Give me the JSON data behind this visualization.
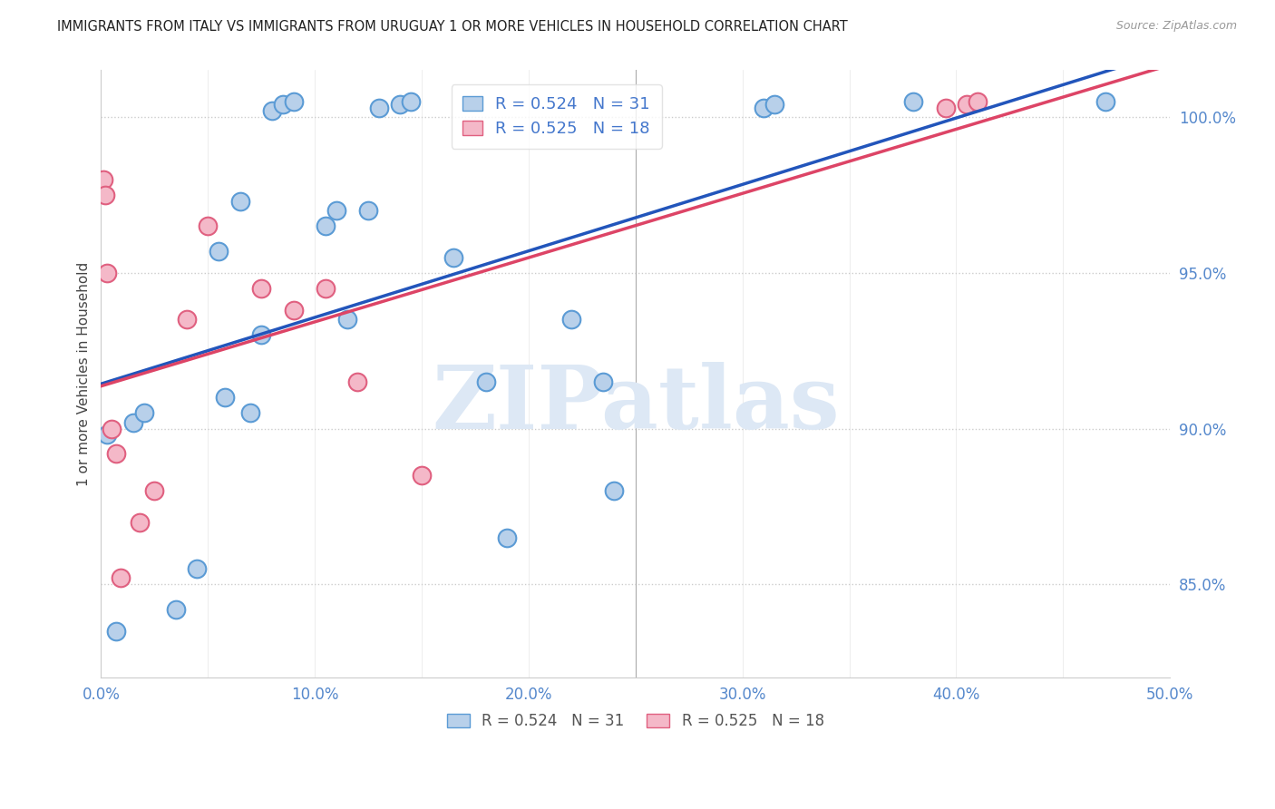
{
  "title": "IMMIGRANTS FROM ITALY VS IMMIGRANTS FROM URUGUAY 1 OR MORE VEHICLES IN HOUSEHOLD CORRELATION CHART",
  "source": "Source: ZipAtlas.com",
  "ylabel": "1 or more Vehicles in Household",
  "xlim": [
    0.0,
    50.0
  ],
  "ylim": [
    82.0,
    101.5
  ],
  "x_ticks": [
    0.0,
    10.0,
    20.0,
    30.0,
    40.0,
    50.0
  ],
  "x_tick_labels": [
    "0.0%",
    "10.0%",
    "20.0%",
    "30.0%",
    "40.0%",
    "50.0%"
  ],
  "y_ticks": [
    85.0,
    90.0,
    95.0,
    100.0
  ],
  "y_tick_labels": [
    "85.0%",
    "90.0%",
    "95.0%",
    "100.0%"
  ],
  "italy_color": "#b8d0ea",
  "italy_edge_color": "#5b9bd5",
  "uruguay_color": "#f4b8c8",
  "uruguay_edge_color": "#e06080",
  "italy_line_color": "#2255bb",
  "uruguay_line_color": "#dd4466",
  "italy_R": 0.524,
  "italy_N": 31,
  "uruguay_R": 0.525,
  "uruguay_N": 18,
  "background_color": "#ffffff",
  "grid_color": "#cccccc",
  "watermark": "ZIPatlas",
  "watermark_color": "#dde8f5",
  "italy_x": [
    0.3,
    0.7,
    1.5,
    2.0,
    3.5,
    4.5,
    5.5,
    5.8,
    6.5,
    7.0,
    7.5,
    8.0,
    8.5,
    9.0,
    10.5,
    11.0,
    11.5,
    12.5,
    13.0,
    14.0,
    14.5,
    16.5,
    18.0,
    19.0,
    22.0,
    23.5,
    24.0,
    31.0,
    31.5,
    38.0,
    47.0
  ],
  "italy_y": [
    89.8,
    83.5,
    90.2,
    90.5,
    84.2,
    85.5,
    95.7,
    91.0,
    97.3,
    90.5,
    93.0,
    100.2,
    100.4,
    100.5,
    96.5,
    97.0,
    93.5,
    97.0,
    100.3,
    100.4,
    100.5,
    95.5,
    91.5,
    86.5,
    93.5,
    91.5,
    88.0,
    100.3,
    100.4,
    100.5,
    100.5
  ],
  "uruguay_x": [
    0.1,
    0.2,
    0.3,
    0.5,
    0.7,
    0.9,
    1.8,
    2.5,
    4.0,
    5.0,
    7.5,
    9.0,
    10.5,
    12.0,
    15.0,
    39.5,
    40.5,
    41.0
  ],
  "uruguay_y": [
    98.0,
    97.5,
    95.0,
    90.0,
    89.2,
    85.2,
    87.0,
    88.0,
    93.5,
    96.5,
    94.5,
    93.8,
    94.5,
    91.5,
    88.5,
    100.3,
    100.4,
    100.5
  ]
}
